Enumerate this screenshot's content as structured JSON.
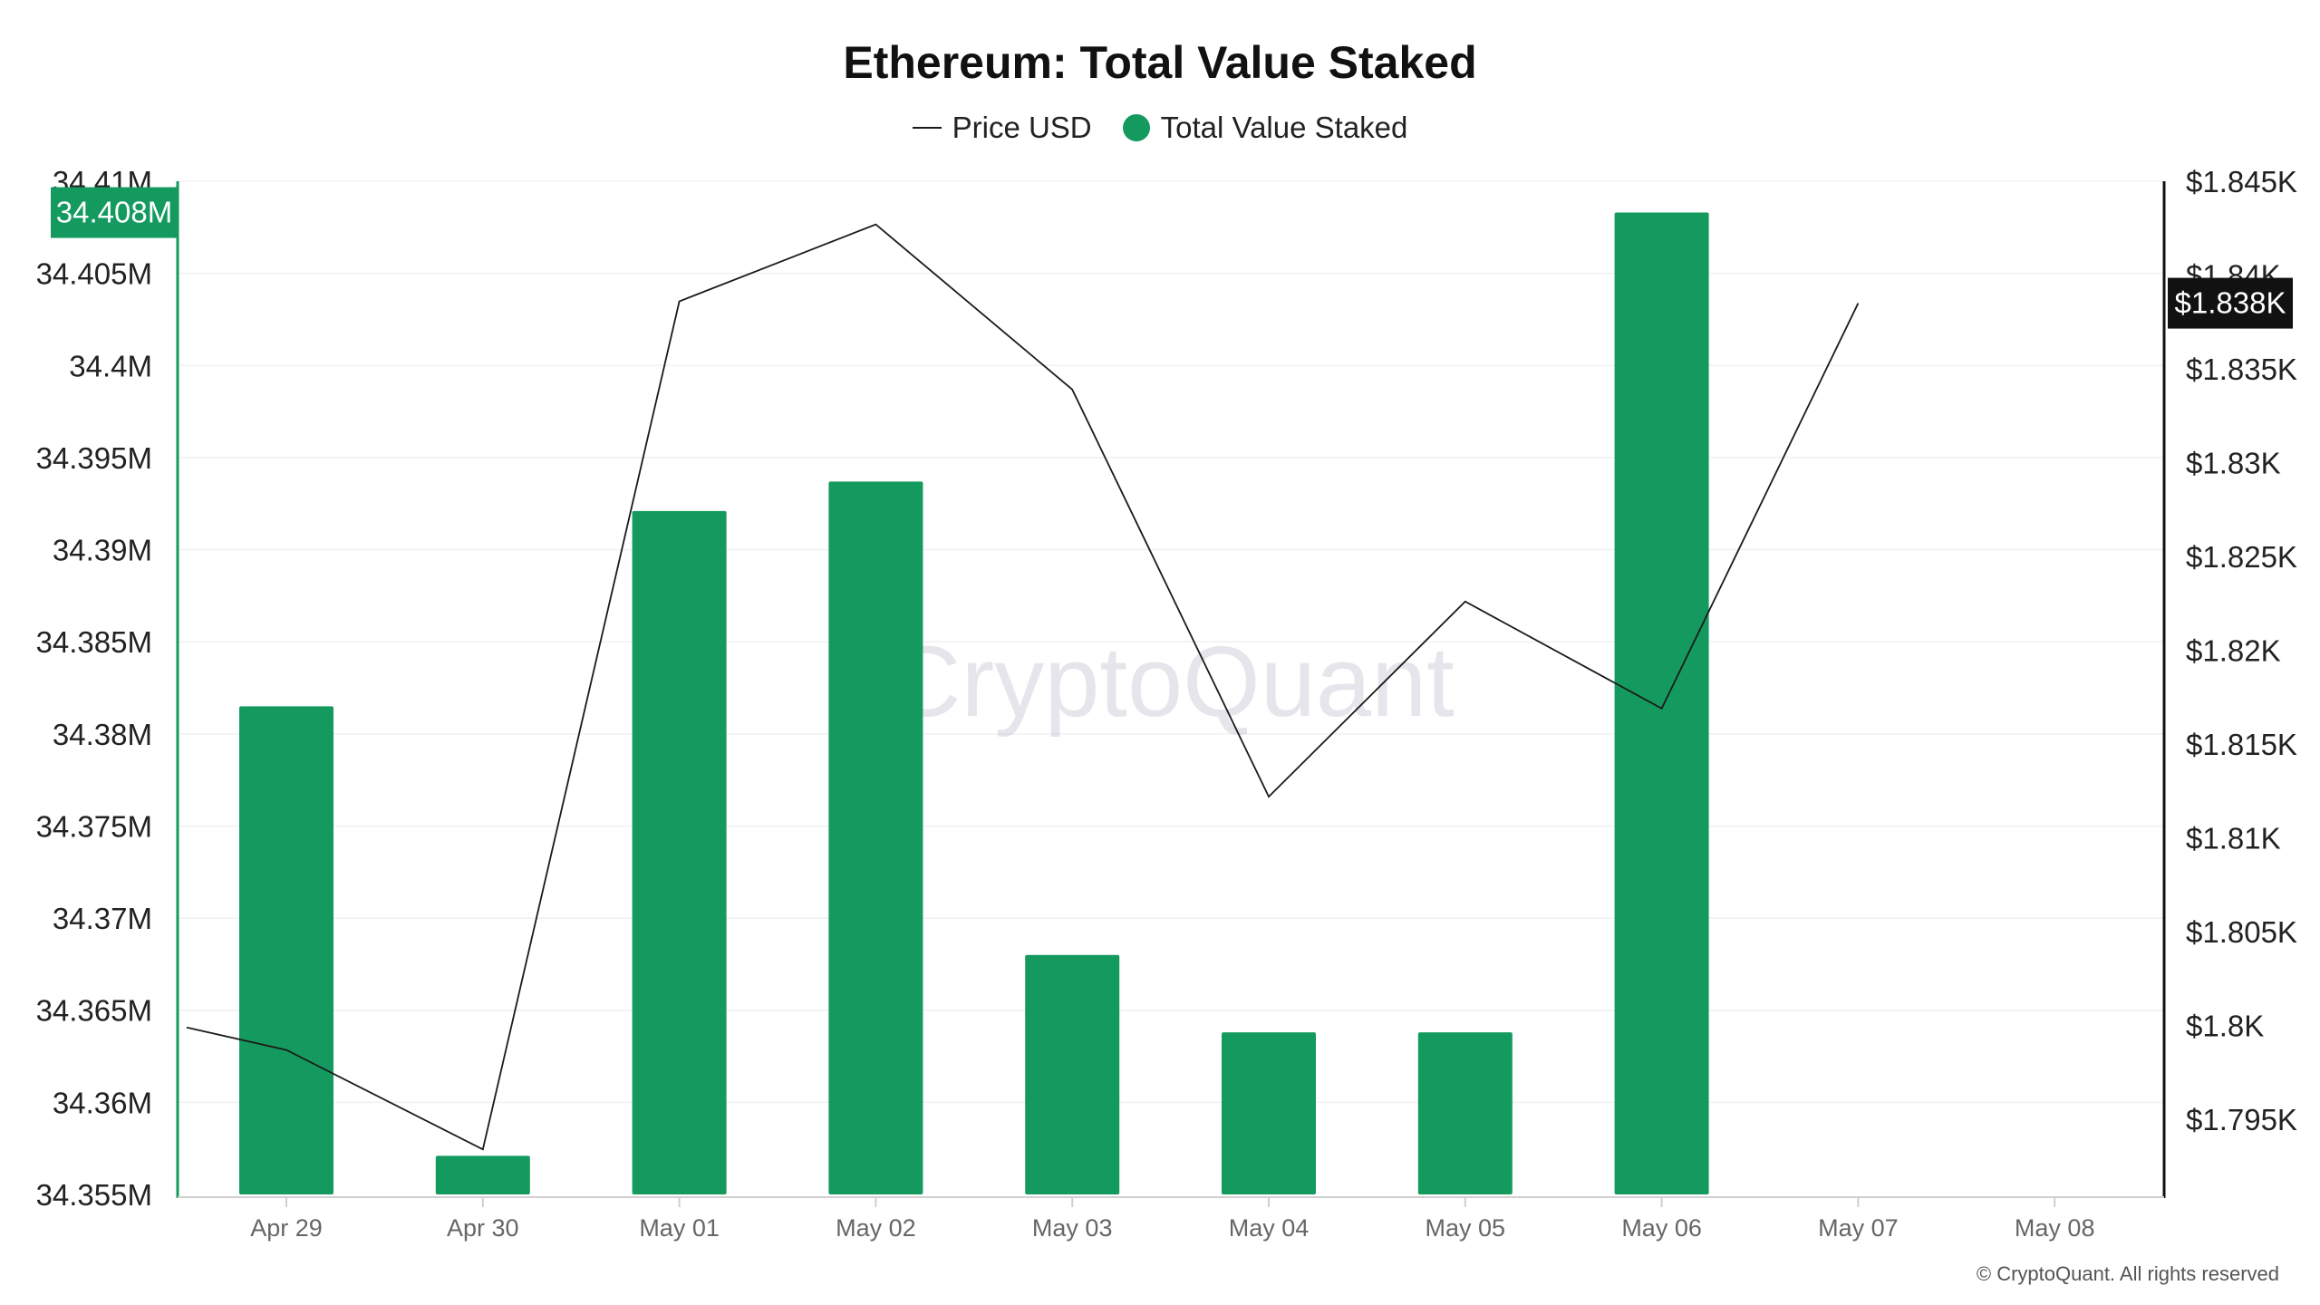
{
  "title": "Ethereum: Total Value Staked",
  "legend": {
    "price_label": "Price USD",
    "staked_label": "Total Value Staked"
  },
  "watermark": "CryptoQuant",
  "copyright": "© CryptoQuant. All rights reserved",
  "colors": {
    "bar": "#149a5e",
    "line": "#1a1a1a",
    "left_axis": "#149a5e",
    "right_axis": "#111111"
  },
  "chart_data": {
    "type": "bar",
    "categories": [
      "Apr 29",
      "Apr 30",
      "May 01",
      "May 02",
      "May 03",
      "May 04",
      "May 05",
      "May 06",
      "May 07",
      "May 08"
    ],
    "series": [
      {
        "name": "Total Value Staked",
        "type": "bar",
        "axis": "left",
        "values": [
          34.3815,
          34.3571,
          34.3921,
          34.3937,
          34.368,
          34.3638,
          34.3638,
          34.4083,
          null,
          null
        ]
      },
      {
        "name": "Price USD",
        "type": "line",
        "axis": "right",
        "values": [
          1798.7,
          1793.4,
          1838.6,
          1842.7,
          1833.9,
          1812.2,
          1822.6,
          1816.9,
          1838.5,
          null
        ]
      }
    ],
    "line_start_value": 1799.9,
    "left_axis": {
      "ylim": [
        34.355,
        34.41
      ],
      "unit": "M",
      "ticks": [
        "34.355M",
        "34.36M",
        "34.365M",
        "34.37M",
        "34.375M",
        "34.38M",
        "34.385M",
        "34.39M",
        "34.395M",
        "34.4M",
        "34.405M",
        "34.41M"
      ],
      "highlight_label": "34.408M"
    },
    "right_axis": {
      "ylim": [
        1791,
        1845
      ],
      "ticks": [
        "$1.795K",
        "$1.8K",
        "$1.805K",
        "$1.81K",
        "$1.815K",
        "$1.82K",
        "$1.825K",
        "$1.83K",
        "$1.835K",
        "$1.84K",
        "$1.845K"
      ],
      "highlight_label": "$1.838K"
    },
    "grid": true,
    "legend_position": "top-center"
  }
}
